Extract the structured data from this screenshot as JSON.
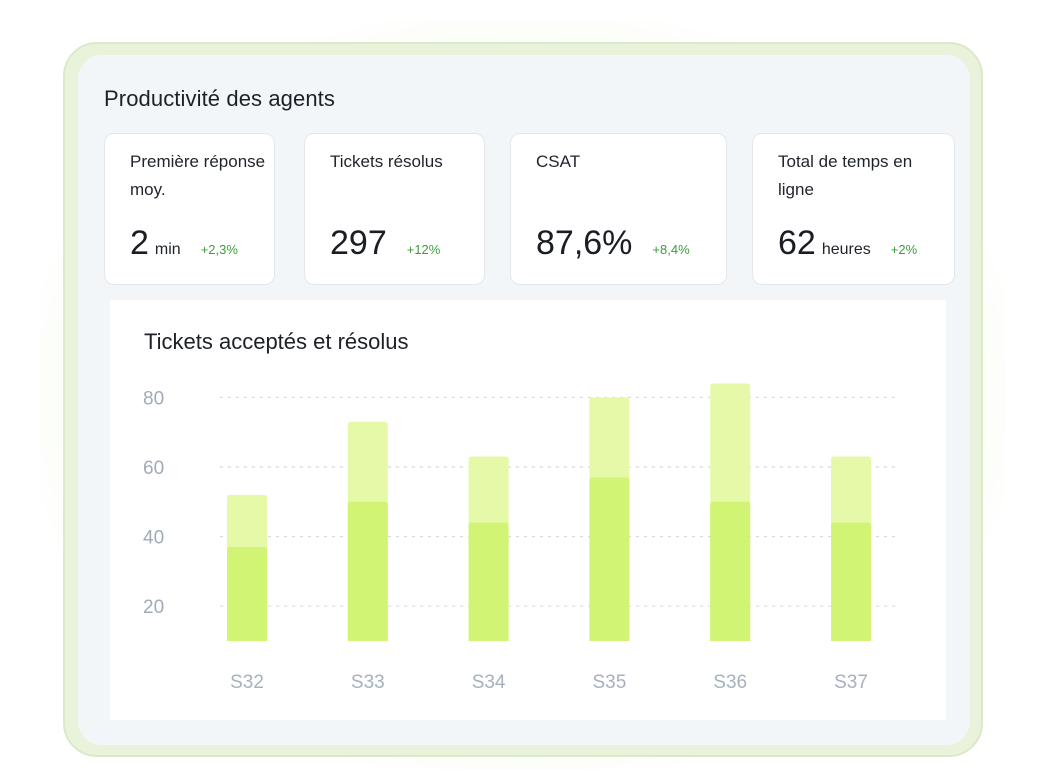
{
  "panel_title": "Productivité des agents",
  "kpis": [
    {
      "label": "Première réponse moy.",
      "value": "2",
      "unit": "min",
      "delta": "+2,3%"
    },
    {
      "label": "Tickets résolus",
      "value": "297",
      "unit": "",
      "delta": "+12%"
    },
    {
      "label": "CSAT",
      "value": "87,6%",
      "unit": "",
      "delta": "+8,4%"
    },
    {
      "label": "Total de temps en ligne",
      "value": "62",
      "unit": "heures",
      "delta": "+2%"
    }
  ],
  "colors": {
    "accepted": "#e5f9a8",
    "resolved": "#d1f475",
    "delta_positive": "#3f9c3a",
    "grid": "#d6dbe1"
  },
  "chart_data": {
    "type": "bar",
    "stacked": false,
    "overlapping": true,
    "title": "Tickets acceptés et résolus",
    "xlabel": "",
    "ylabel": "",
    "categories": [
      "S32",
      "S33",
      "S34",
      "S35",
      "S36",
      "S37"
    ],
    "series": [
      {
        "values": [
          52,
          73,
          63,
          80,
          84,
          63
        ]
      },
      {
        "values": [
          37,
          50,
          44,
          57,
          50,
          44
        ]
      }
    ],
    "yticks": [
      20,
      40,
      60,
      80
    ],
    "ylim": [
      10,
      85
    ],
    "grid": true,
    "legend": "none"
  }
}
